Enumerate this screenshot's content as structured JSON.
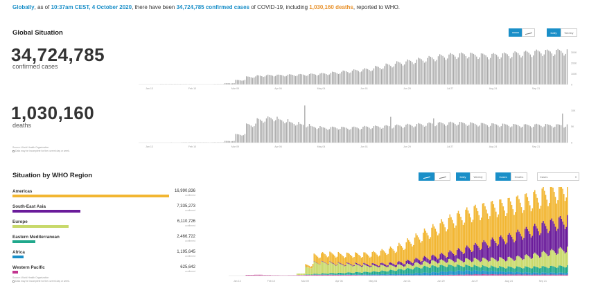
{
  "headline": {
    "globally": "Globally",
    "as_of": ", as of ",
    "time": "10:37am CEST, 4 October 2020",
    "mid": ", there have been ",
    "cases": "34,724,785 confirmed cases",
    "of_covid": " of COVID-19, including ",
    "deaths": "1,030,160 deaths",
    "tail": ", reported to WHO."
  },
  "global": {
    "title": "Global Situation",
    "cases_value": "34,724,785",
    "cases_label": "confirmed cases",
    "deaths_value": "1,030,160",
    "deaths_label": "deaths",
    "buttons": {
      "bar_label": "",
      "line_label": "",
      "daily": "Daily",
      "weekly": "Weekly"
    },
    "source": "Source: World Health Organization",
    "note": "Data may be incomplete for the current day or week."
  },
  "region": {
    "title": "Situation by WHO Region",
    "buttons": {
      "daily": "Daily",
      "weekly": "Weekly",
      "cases": "Cases",
      "deaths": "Deaths",
      "select": "Cases"
    },
    "source": "Source: World Health Organization",
    "note": "Data may be incomplete for the current day or week.",
    "items": [
      {
        "name": "Americas",
        "value": "16,990,836",
        "sub": "confirmed",
        "fraction": 1.0,
        "color": "#f2b632"
      },
      {
        "name": "South-East Asia",
        "value": "7,335,273",
        "sub": "confirmed",
        "fraction": 0.432,
        "color": "#6a1b9a"
      },
      {
        "name": "Europe",
        "value": "6,110,726",
        "sub": "confirmed",
        "fraction": 0.36,
        "color": "#c8d96b"
      },
      {
        "name": "Eastern Mediterranean",
        "value": "2,466,722",
        "sub": "confirmed",
        "fraction": 0.145,
        "color": "#20a88c"
      },
      {
        "name": "Africa",
        "value": "1,195,645",
        "sub": "confirmed",
        "fraction": 0.07,
        "color": "#1a8fc8"
      },
      {
        "name": "Western Pacific",
        "value": "625,642",
        "sub": "confirmed",
        "fraction": 0.037,
        "color": "#c2348f"
      }
    ]
  },
  "chart_data": [
    {
      "type": "bar",
      "x_labels": [
        "Jan 13",
        "Feb 10",
        "Mar 09",
        "Apr 06",
        "May 04",
        "Jun 01",
        "Jun 29",
        "Jul 27",
        "Aug 24",
        "Sep 21"
      ],
      "y_ticks": [
        "300K",
        "200K",
        "100K",
        "0"
      ],
      "ylim": [
        0,
        360000
      ],
      "color": "#a9a9a9",
      "weeks": [
        {
          "w": 0,
          "v": 0
        },
        {
          "w": 1,
          "v": 200
        },
        {
          "w": 2,
          "v": 2500
        },
        {
          "w": 3,
          "v": 3000
        },
        {
          "w": 4,
          "v": 2200
        },
        {
          "w": 5,
          "v": 1500
        },
        {
          "w": 6,
          "v": 1200
        },
        {
          "w": 7,
          "v": 2500
        },
        {
          "w": 8,
          "v": 12000
        },
        {
          "w": 9,
          "v": 40000
        },
        {
          "w": 10,
          "v": 70000
        },
        {
          "w": 11,
          "v": 80000
        },
        {
          "w": 12,
          "v": 85000
        },
        {
          "w": 13,
          "v": 85000
        },
        {
          "w": 14,
          "v": 88000
        },
        {
          "w": 15,
          "v": 90000
        },
        {
          "w": 16,
          "v": 95000
        },
        {
          "w": 17,
          "v": 100000
        },
        {
          "w": 18,
          "v": 110000
        },
        {
          "w": 19,
          "v": 120000
        },
        {
          "w": 20,
          "v": 130000
        },
        {
          "w": 21,
          "v": 140000
        },
        {
          "w": 22,
          "v": 160000
        },
        {
          "w": 23,
          "v": 180000
        },
        {
          "w": 24,
          "v": 200000
        },
        {
          "w": 25,
          "v": 215000
        },
        {
          "w": 26,
          "v": 230000
        },
        {
          "w": 27,
          "v": 245000
        },
        {
          "w": 28,
          "v": 260000
        },
        {
          "w": 29,
          "v": 270000
        },
        {
          "w": 30,
          "v": 275000
        },
        {
          "w": 31,
          "v": 270000
        },
        {
          "w": 32,
          "v": 265000
        },
        {
          "w": 33,
          "v": 270000
        },
        {
          "w": 34,
          "v": 275000
        },
        {
          "w": 35,
          "v": 285000
        },
        {
          "w": 36,
          "v": 290000
        },
        {
          "w": 37,
          "v": 300000
        },
        {
          "w": 38,
          "v": 300000
        },
        {
          "w": 39,
          "v": 305000
        }
      ]
    },
    {
      "type": "bar",
      "x_labels": [
        "Jan 13",
        "Feb 10",
        "Mar 09",
        "Apr 06",
        "May 04",
        "Jun 01",
        "Jun 29",
        "Jul 27",
        "Aug 24",
        "Sep 21"
      ],
      "y_ticks": [
        "10K",
        "5K",
        "0"
      ],
      "ylim": [
        0,
        12000
      ],
      "color": "#a9a9a9",
      "weeks": [
        {
          "w": 0,
          "v": 0
        },
        {
          "w": 1,
          "v": 0
        },
        {
          "w": 2,
          "v": 40
        },
        {
          "w": 3,
          "v": 60
        },
        {
          "w": 4,
          "v": 90
        },
        {
          "w": 5,
          "v": 80
        },
        {
          "w": 6,
          "v": 70
        },
        {
          "w": 7,
          "v": 100
        },
        {
          "w": 8,
          "v": 500
        },
        {
          "w": 9,
          "v": 2500
        },
        {
          "w": 10,
          "v": 5500
        },
        {
          "w": 11,
          "v": 7000
        },
        {
          "w": 12,
          "v": 7500
        },
        {
          "w": 13,
          "v": 6800
        },
        {
          "w": 14,
          "v": 6000
        },
        {
          "w": 15,
          "v": 5400
        },
        {
          "w": 16,
          "v": 4800
        },
        {
          "w": 17,
          "v": 4500
        },
        {
          "w": 18,
          "v": 4600
        },
        {
          "w": 19,
          "v": 4500
        },
        {
          "w": 20,
          "v": 4600
        },
        {
          "w": 21,
          "v": 4800
        },
        {
          "w": 22,
          "v": 4900
        },
        {
          "w": 23,
          "v": 5000
        },
        {
          "w": 24,
          "v": 5200
        },
        {
          "w": 25,
          "v": 5400
        },
        {
          "w": 26,
          "v": 5600
        },
        {
          "w": 27,
          "v": 5800
        },
        {
          "w": 28,
          "v": 5900
        },
        {
          "w": 29,
          "v": 6000
        },
        {
          "w": 30,
          "v": 5900
        },
        {
          "w": 31,
          "v": 5700
        },
        {
          "w": 32,
          "v": 5600
        },
        {
          "w": 33,
          "v": 5500
        },
        {
          "w": 34,
          "v": 5400
        },
        {
          "w": 35,
          "v": 5300
        },
        {
          "w": 36,
          "v": 5300
        },
        {
          "w": 37,
          "v": 5400
        },
        {
          "w": 38,
          "v": 5300
        },
        {
          "w": 39,
          "v": 5300
        }
      ],
      "peaks": [
        {
          "w": 15,
          "v": 11500
        },
        {
          "w": 23,
          "v": 8000
        },
        {
          "w": 27,
          "v": 7500
        },
        {
          "w": 39,
          "v": 9000
        }
      ]
    },
    {
      "type": "area",
      "stacked": true,
      "x_labels": [
        "Jan 13",
        "Feb 10",
        "Mar 09",
        "Apr 06",
        "May 04",
        "Jun 01",
        "Jun 29",
        "Jul 27",
        "Aug 24",
        "Sep 21"
      ],
      "ylim": [
        0,
        320000
      ],
      "series": [
        {
          "name": "Western Pacific",
          "color": "#c2348f",
          "values": [
            0,
            0,
            2500,
            3000,
            2000,
            1500,
            1200,
            1500,
            2000,
            2500,
            3000,
            3000,
            3000,
            2500,
            2500,
            2000,
            1500,
            1500,
            1500,
            1500,
            1500,
            1500,
            1500,
            1500,
            2000,
            2500,
            3000,
            3500,
            4000,
            4500,
            4500,
            4500,
            4000,
            4000,
            4000,
            3500,
            3500,
            3500,
            3500,
            3500
          ]
        },
        {
          "name": "Africa",
          "color": "#1a8fc8",
          "values": [
            0,
            0,
            0,
            0,
            0,
            0,
            0,
            0,
            0,
            200,
            500,
            800,
            1000,
            1200,
            1500,
            2000,
            2500,
            3000,
            3500,
            4000,
            5000,
            6000,
            8000,
            9000,
            10000,
            12000,
            13000,
            14000,
            14000,
            13000,
            12000,
            11000,
            10000,
            9000,
            8000,
            7500,
            7000,
            7000,
            7000,
            7000
          ]
        },
        {
          "name": "Eastern Mediterranean",
          "color": "#20a88c",
          "values": [
            0,
            0,
            0,
            0,
            0,
            0,
            0,
            0,
            500,
            1500,
            3000,
            4000,
            5000,
            6000,
            7000,
            8000,
            9000,
            10000,
            12000,
            14000,
            16000,
            18000,
            20000,
            22000,
            22000,
            21000,
            20000,
            18000,
            17000,
            16000,
            16000,
            16000,
            16000,
            17000,
            18000,
            19000,
            20000,
            21000,
            22000,
            23000
          ]
        },
        {
          "name": "Europe",
          "color": "#c8d96b",
          "values": [
            0,
            0,
            0,
            0,
            0,
            0,
            0,
            0,
            5000,
            25000,
            40000,
            38000,
            33000,
            30000,
            28000,
            25000,
            22000,
            20000,
            18000,
            16000,
            15000,
            15000,
            15000,
            16000,
            17000,
            18000,
            19000,
            20000,
            22000,
            24000,
            26000,
            28000,
            30000,
            32000,
            36000,
            40000,
            45000,
            50000,
            55000,
            60000
          ]
        },
        {
          "name": "South-East Asia",
          "color": "#6a1b9a",
          "values": [
            0,
            0,
            0,
            0,
            0,
            0,
            0,
            0,
            100,
            500,
            1000,
            1500,
            2000,
            2500,
            3000,
            4000,
            5000,
            6000,
            7000,
            8000,
            10000,
            12000,
            14000,
            16000,
            18000,
            22000,
            28000,
            35000,
            42000,
            50000,
            58000,
            66000,
            72000,
            78000,
            85000,
            90000,
            95000,
            98000,
            100000,
            102000
          ]
        },
        {
          "name": "Americas",
          "color": "#f2b632",
          "values": [
            0,
            0,
            0,
            0,
            0,
            0,
            0,
            0,
            200,
            8000,
            25000,
            30000,
            32000,
            32000,
            33000,
            34000,
            36000,
            40000,
            45000,
            52000,
            60000,
            70000,
            80000,
            90000,
            100000,
            110000,
            118000,
            122000,
            125000,
            125000,
            122000,
            120000,
            118000,
            115000,
            112000,
            110000,
            110000,
            112000,
            115000,
            118000
          ]
        }
      ]
    }
  ]
}
